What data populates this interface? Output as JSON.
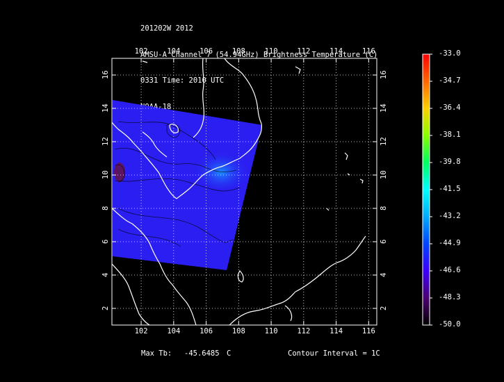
{
  "header": {
    "line1": "201202W 2012",
    "line2": "AMSU-A Channel 7 (54.94GHz) Brightness Temperature (C)",
    "line3": "0331 Time: 2010 UTC",
    "line4": "NOAA-18"
  },
  "map": {
    "lon_ticks": [
      "102",
      "104",
      "106",
      "108",
      "110",
      "112",
      "114",
      "116"
    ],
    "lat_ticks": [
      "2",
      "4",
      "6",
      "8",
      "10",
      "12",
      "14",
      "16"
    ],
    "lon_range": [
      100.2,
      116.5
    ],
    "lat_range": [
      1.0,
      17.0
    ],
    "swath_color": "#2a1ff0",
    "grid_color": "#ffffff"
  },
  "colorbar": {
    "labels": [
      "-33.0",
      "-34.7",
      "-36.4",
      "-38.1",
      "-39.8",
      "-41.5",
      "-43.2",
      "-44.9",
      "-46.6",
      "-48.3",
      "-50.0"
    ],
    "colors_top_to_bottom": [
      "#ff0000",
      "#ff6600",
      "#ffd000",
      "#88ff00",
      "#00ff60",
      "#00ffff",
      "#00aaff",
      "#0044ff",
      "#3b00ff",
      "#4b0070",
      "#000000"
    ]
  },
  "footer": {
    "max_tb_label": "Max Tb:",
    "max_tb_value": "-45.6485",
    "max_tb_unit": "C",
    "contour": "Contour Interval = 1C"
  }
}
